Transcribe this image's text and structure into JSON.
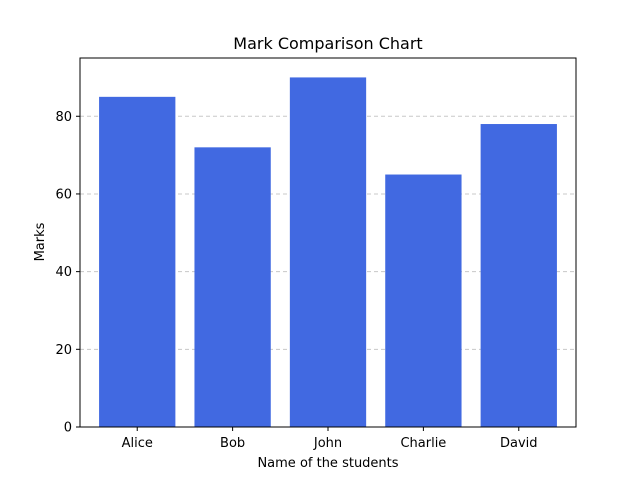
{
  "chart_data": {
    "type": "bar",
    "title": "Mark Comparison Chart",
    "xlabel": "Name of the students",
    "ylabel": "Marks",
    "categories": [
      "Alice",
      "Bob",
      "John",
      "Charlie",
      "David"
    ],
    "values": [
      85,
      72,
      90,
      65,
      78
    ],
    "ylim": [
      0,
      95
    ],
    "yticks": [
      0,
      20,
      40,
      60,
      80
    ],
    "grid": "y-dashed",
    "bar_color": "#4169E1",
    "grid_color": "#c8c8c8"
  }
}
